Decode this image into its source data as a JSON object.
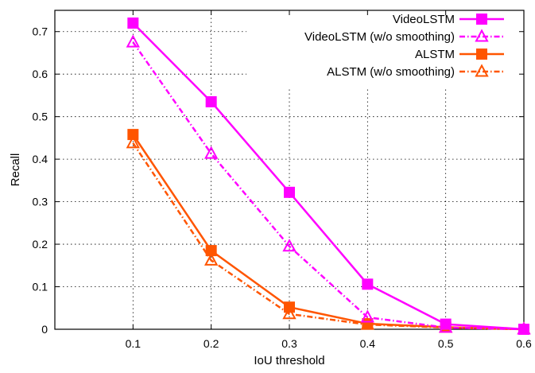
{
  "chart_data": {
    "type": "line",
    "xlabel": "IoU threshold",
    "ylabel": "Recall",
    "xlim": [
      0,
      0.6
    ],
    "ylim": [
      0,
      0.75
    ],
    "x_ticks": [
      "0.1",
      "0.2",
      "0.3",
      "0.4",
      "0.5",
      "0.6"
    ],
    "y_ticks": [
      "0",
      "0.1",
      "0.2",
      "0.3",
      "0.4",
      "0.5",
      "0.6",
      "0.7"
    ],
    "grid": true,
    "legend_position": "top-right",
    "x": [
      0.1,
      0.2,
      0.3,
      0.4,
      0.5,
      0.6
    ],
    "series": [
      {
        "name": "VideoLSTM",
        "values": [
          0.72,
          0.535,
          0.322,
          0.106,
          0.012,
          0.0
        ],
        "color": "#ff00ff",
        "marker": "square",
        "dash": "solid"
      },
      {
        "name": "VideoLSTM (w/o smoothing)",
        "values": [
          0.675,
          0.413,
          0.195,
          0.028,
          0.004,
          0.0
        ],
        "color": "#ff00ff",
        "marker": "triangle",
        "dash": "dashdot"
      },
      {
        "name": "ALSTM",
        "values": [
          0.458,
          0.185,
          0.052,
          0.013,
          0.005,
          0.0
        ],
        "color": "#ff5500",
        "marker": "square",
        "dash": "solid"
      },
      {
        "name": "ALSTM (w/o smoothing)",
        "values": [
          0.438,
          0.162,
          0.036,
          0.011,
          0.004,
          0.0
        ],
        "color": "#ff5500",
        "marker": "triangle",
        "dash": "dashdot"
      }
    ]
  }
}
